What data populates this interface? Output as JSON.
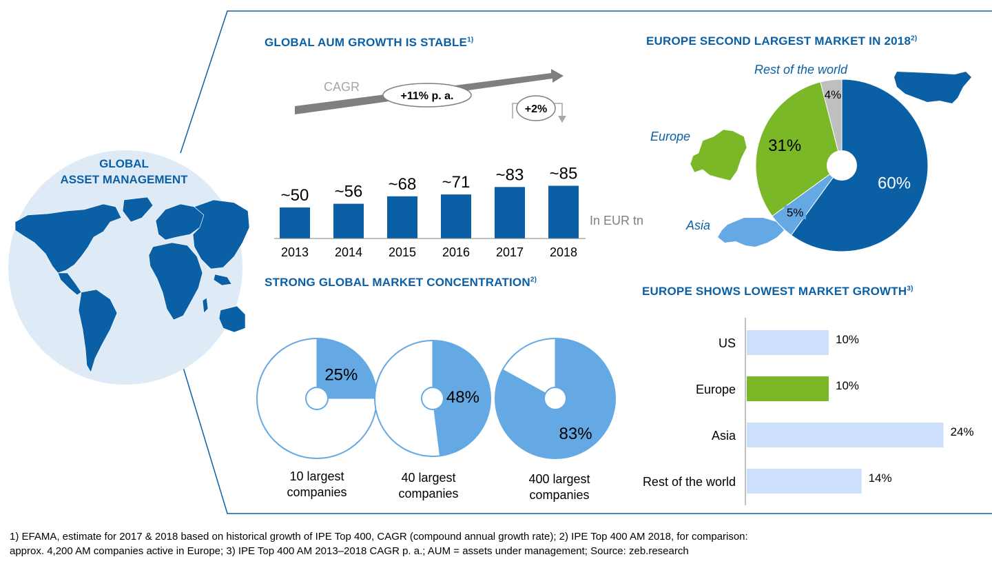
{
  "globe": {
    "title_line1": "GLOBAL",
    "title_line2": "ASSET MANAGEMENT"
  },
  "titles": {
    "aum": "GLOBAL AUM GROWTH IS STABLE",
    "aum_note": "1)",
    "europe_share": "EUROPE SECOND LARGEST MARKET IN 2018",
    "europe_share_note": "2)",
    "concentration": "STRONG GLOBAL MARKET CONCENTRATION",
    "concentration_note": "2)",
    "growth": "EUROPE SHOWS LOWEST MARKET GROWTH",
    "growth_note": "3)"
  },
  "colors": {
    "brand_blue": "#0b5fa5",
    "light_blue": "#64a8e4",
    "green": "#7ab827",
    "grey": "#bfbfbf",
    "pale_blue": "#cce0fb",
    "globe_bg": "#deebf7"
  },
  "chart_data": [
    {
      "id": "aum_growth",
      "type": "bar",
      "categories": [
        "2013",
        "2014",
        "2015",
        "2016",
        "2017",
        "2018"
      ],
      "values": [
        50,
        56,
        68,
        71,
        83,
        85
      ],
      "data_labels": [
        "~50",
        "~56",
        "~68",
        "~71",
        "~83",
        "~85"
      ],
      "unit_label": "In EUR tn",
      "cagr_label": "CAGR",
      "cagr_value": "+11% p. a.",
      "growth_badge": "+2%"
    },
    {
      "id": "europe_share",
      "type": "pie",
      "slices": [
        {
          "label": "60%",
          "value": 60,
          "color": "#0b5fa5"
        },
        {
          "label": "5%",
          "value": 5,
          "color": "#64a8e4"
        },
        {
          "label": "31%",
          "value": 31,
          "color": "#7ab827"
        },
        {
          "label": "4%",
          "value": 4,
          "color": "#bfbfbf"
        }
      ],
      "region_labels": {
        "rest": "Rest of the world",
        "europe": "Europe",
        "asia": "Asia"
      }
    },
    {
      "id": "concentration",
      "type": "pie",
      "pies": [
        {
          "value": 25,
          "label": "25%",
          "caption_line1": "10 largest",
          "caption_line2": "companies"
        },
        {
          "value": 48,
          "label": "48%",
          "caption_line1": "40 largest",
          "caption_line2": "companies"
        },
        {
          "value": 83,
          "label": "83%",
          "caption_line1": "400 largest",
          "caption_line2": "companies"
        }
      ]
    },
    {
      "id": "market_growth",
      "type": "bar",
      "orientation": "horizontal",
      "categories": [
        "US",
        "Europe",
        "Asia",
        "Rest of the world"
      ],
      "values": [
        10,
        10,
        24,
        14
      ],
      "data_labels": [
        "10%",
        "10%",
        "24%",
        "14%"
      ],
      "highlight": "Europe"
    }
  ],
  "footnote": {
    "line1": "1) EFAMA, estimate for 2017 & 2018 based on historical growth of IPE Top 400, CAGR (compound annual growth rate); 2) IPE Top 400 AM 2018, for comparison:",
    "line2": "approx. 4,200 AM companies active in Europe; 3) IPE Top 400 AM 2013–2018 CAGR p. a.; AUM = assets under management; Source: zeb.research"
  }
}
